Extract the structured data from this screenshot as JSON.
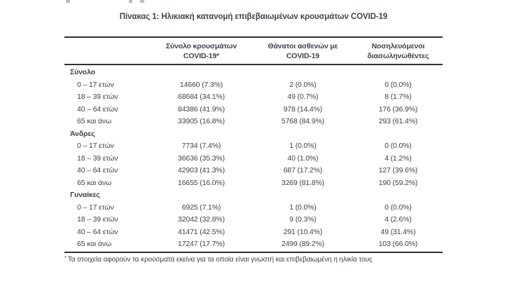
{
  "title": "Πίνακας 1: Ηλικιακή κατανομή επιβεβαιωμένων κρουσμάτων COVID-19",
  "table": {
    "columns": [
      {
        "id": "age-group",
        "line1": "",
        "line2": ""
      },
      {
        "id": "cases",
        "line1": "Σύνολο κρουσμάτων",
        "line2": "COVID-19*"
      },
      {
        "id": "deaths",
        "line1": "Θάνατοι ασθενών με",
        "line2": "COVID-19"
      },
      {
        "id": "intubated",
        "line1": "Νοσηλευόμενοι",
        "line2": "διασωληνωθέντες"
      }
    ],
    "sections": [
      {
        "header": "Σύνολο",
        "rows": [
          {
            "age": "0 – 17 ετών",
            "cases": "14660 (7.3%)",
            "deaths": "2 (0.0%)",
            "intubated": "0 (0.0%)"
          },
          {
            "age": "18 – 39 ετών",
            "cases": "68684 (34.1%)",
            "deaths": "49 (0.7%)",
            "intubated": "8 (1.7%)"
          },
          {
            "age": "40 – 64 ετών",
            "cases": "84386 (41.9%)",
            "deaths": "978 (14.4%)",
            "intubated": "176 (36.9%)"
          },
          {
            "age": "65 και άνω",
            "cases": "33905 (16.8%)",
            "deaths": "5768 (84.9%)",
            "intubated": "293 (61.4%)"
          }
        ]
      },
      {
        "header": "Άνδρες",
        "rows": [
          {
            "age": "0 – 17 ετών",
            "cases": "7734 (7.4%)",
            "deaths": "1 (0.0%)",
            "intubated": "0 (0.0%)"
          },
          {
            "age": "18 – 39 ετών",
            "cases": "36636 (35.3%)",
            "deaths": "40 (1.0%)",
            "intubated": "4 (1.2%)"
          },
          {
            "age": "40 – 64 ετών",
            "cases": "42903 (41.3%)",
            "deaths": "687 (17.2%)",
            "intubated": "127 (39.6%)"
          },
          {
            "age": "65 και άνω",
            "cases": "16655 (16.0%)",
            "deaths": "3269 (81.8%)",
            "intubated": "190 (59.2%)"
          }
        ]
      },
      {
        "header": "Γυναίκες",
        "rows": [
          {
            "age": "0 – 17 ετών",
            "cases": "6925 (7.1%)",
            "deaths": "1 (0.0%)",
            "intubated": "0 (0.0%)"
          },
          {
            "age": "18 – 39 ετών",
            "cases": "32042 (32.8%)",
            "deaths": "9 (0.3%)",
            "intubated": "4 (2.6%)"
          },
          {
            "age": "40 – 64 ετών",
            "cases": "41471 (42.5%)",
            "deaths": "291 (10.4%)",
            "intubated": "49 (31.4%)"
          },
          {
            "age": "65 και άνω",
            "cases": "17247 (17.7%)",
            "deaths": "2499 (89.2%)",
            "intubated": "103 (66.0%)"
          }
        ]
      }
    ]
  },
  "footnote": {
    "marker": "*",
    "text": "Τα στοιχεία αφορούν τα κρούσματα εκείνα για τα οποία είναι γνωστή και επιβεβαιωμένη η ηλικία τους"
  },
  "colors": {
    "text": "#3d434a",
    "rule": "#2b3138",
    "background": "#ffffff"
  }
}
